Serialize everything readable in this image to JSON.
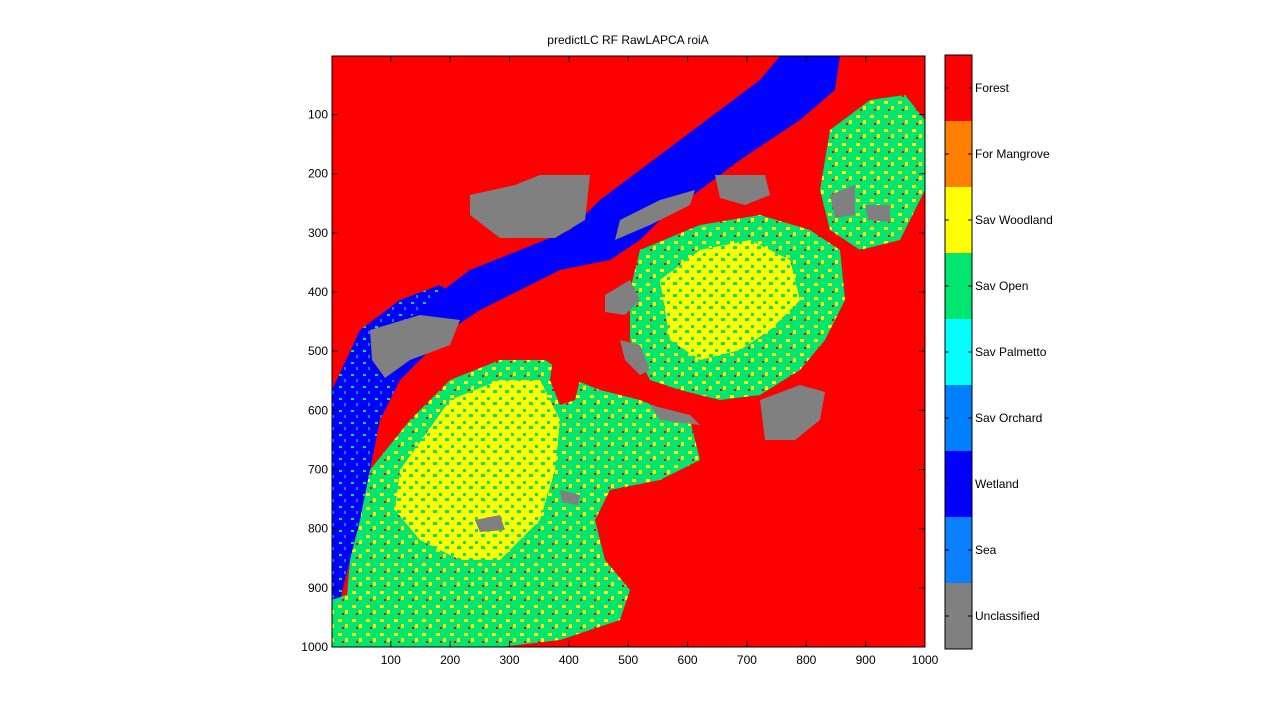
{
  "title": "predictLC RF RawLAPCA roiA",
  "map": {
    "x_ticks": [
      "100",
      "200",
      "300",
      "400",
      "500",
      "600",
      "700",
      "800",
      "900",
      "1000"
    ],
    "y_ticks": [
      "100",
      "200",
      "300",
      "400",
      "500",
      "600",
      "700",
      "800",
      "900",
      "1000"
    ],
    "x_range": [
      1,
      1000
    ],
    "y_range": [
      1,
      1000
    ],
    "y_reversed": true
  },
  "legend": {
    "classes": [
      {
        "label": "Forest",
        "color": "#ff0000"
      },
      {
        "label": "For Mangrove",
        "color": "#ff8000"
      },
      {
        "label": "Sav Woodland",
        "color": "#ffff00"
      },
      {
        "label": "Sav Open",
        "color": "#00e66e"
      },
      {
        "label": "Sav Palmetto",
        "color": "#00ffff"
      },
      {
        "label": "Sav Orchard",
        "color": "#0080ff"
      },
      {
        "label": "Wetland",
        "color": "#0000ff"
      },
      {
        "label": "Sea",
        "color": "#0a80ff"
      },
      {
        "label": "Unclassified",
        "color": "#808080"
      }
    ]
  }
}
